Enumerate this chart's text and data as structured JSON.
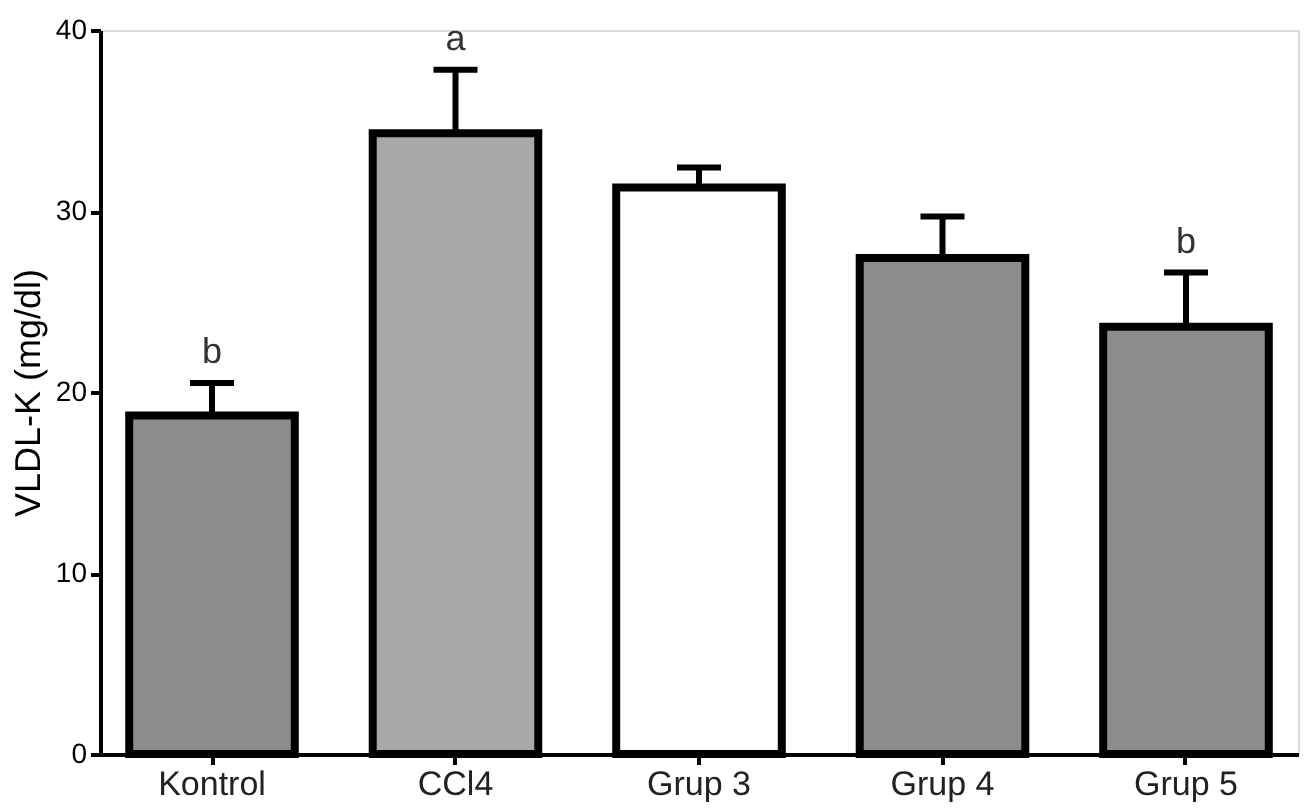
{
  "chart_data": {
    "type": "bar",
    "ylabel": "VLDL-K (mg/dl)",
    "categories": [
      "Kontrol",
      "CCl4",
      "Grup 3",
      "Grup 4",
      "Grup 5"
    ],
    "values": [
      18.7,
      34.3,
      31.3,
      27.4,
      23.6
    ],
    "errors": [
      [
        18.7,
        20.5
      ],
      [
        34.3,
        37.8
      ],
      [
        31.3,
        32.4
      ],
      [
        27.4,
        29.7
      ],
      [
        23.6,
        26.6
      ]
    ],
    "colors": [
      "#8c8c8c",
      "#a8a8a8",
      "#ffffff",
      "#8c8c8c",
      "#8c8c8c"
    ],
    "value_labels": [
      "b",
      "a",
      null,
      null,
      "b"
    ],
    "ylim": [
      0,
      40
    ],
    "yticks": [
      0,
      10,
      20,
      30,
      40
    ],
    "grid": false
  }
}
